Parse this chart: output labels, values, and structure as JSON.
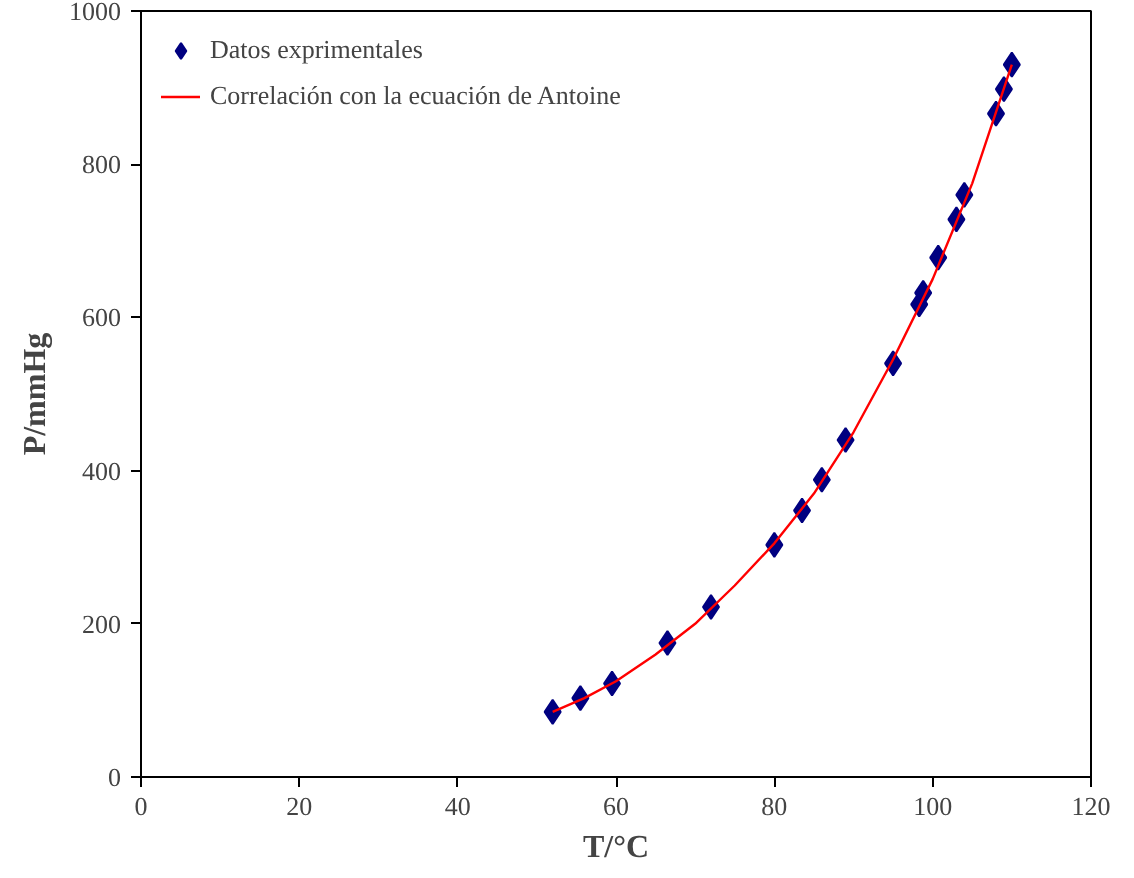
{
  "chart_data": {
    "type": "scatter",
    "xlabel": "T/°C",
    "ylabel": "P/mmHg",
    "xlim": [
      0,
      120
    ],
    "ylim": [
      0,
      1000
    ],
    "xticks": [
      0,
      20,
      40,
      60,
      80,
      100,
      120
    ],
    "yticks": [
      0,
      200,
      400,
      600,
      800,
      1000
    ],
    "grid": false,
    "legend": "top left",
    "series": [
      {
        "name": "Datos exprimentales",
        "marker": "diamond",
        "color": "#000080",
        "x": [
          52,
          55.5,
          59.5,
          66.5,
          72,
          80,
          83.5,
          86,
          89,
          95,
          98.3,
          98.8,
          100.7,
          103,
          104,
          108,
          109,
          110
        ],
        "values": [
          85,
          103,
          122,
          175,
          222,
          303,
          348,
          388,
          440,
          540,
          617,
          632,
          678,
          728,
          760,
          866,
          898,
          930
        ]
      },
      {
        "name": "Correlación con la ecuación de Antoine",
        "type": "line",
        "marker": "none",
        "color": "#ff0000",
        "x": [
          52,
          56,
          60,
          65,
          70,
          75,
          80,
          85,
          90,
          95,
          100,
          105,
          110
        ],
        "values": [
          85,
          103,
          125,
          160,
          200,
          250,
          305,
          370,
          450,
          545,
          650,
          775,
          930
        ]
      }
    ]
  }
}
